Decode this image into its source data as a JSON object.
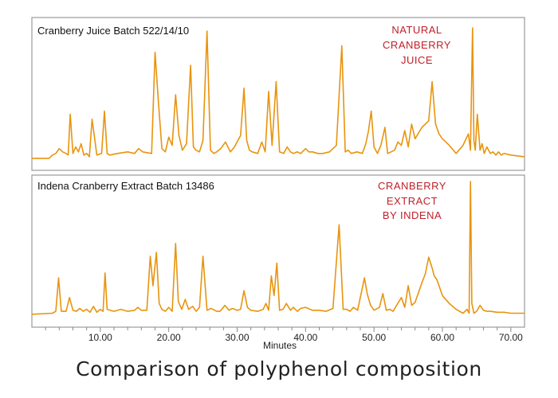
{
  "chart_data": [
    {
      "type": "line",
      "title": "Cranberry Juice Batch 522/14/10",
      "annotation": [
        "NATURAL",
        "CRANBERRY",
        "JUICE"
      ],
      "annotation_color": "#c0202a",
      "line_color": "#e8940e",
      "xlim": [
        0,
        72
      ],
      "grid": false,
      "x": [
        0,
        2.5,
        3.0,
        3.5,
        4.0,
        4.5,
        5.0,
        5.3,
        5.6,
        6.0,
        6.4,
        6.8,
        7.2,
        7.6,
        8.0,
        8.4,
        8.8,
        9.5,
        10.2,
        10.6,
        11.0,
        11.4,
        12.5,
        14.0,
        15.0,
        15.6,
        16.2,
        17.5,
        18.0,
        18.5,
        19.0,
        19.5,
        20.0,
        20.5,
        21.0,
        21.5,
        22.0,
        22.6,
        23.2,
        23.6,
        24.0,
        24.5,
        25.0,
        25.6,
        26.1,
        26.6,
        27.0,
        27.6,
        28.3,
        29.0,
        29.6,
        30.5,
        31.0,
        31.4,
        31.8,
        32.2,
        33.0,
        33.6,
        34.1,
        34.6,
        35.1,
        35.7,
        36.2,
        36.8,
        37.3,
        37.8,
        38.2,
        38.8,
        39.3,
        40.0,
        40.5,
        41.0,
        41.8,
        42.5,
        43.5,
        44.5,
        45.3,
        45.8,
        46.2,
        46.7,
        47.5,
        48.3,
        48.8,
        49.2,
        49.6,
        50.0,
        50.5,
        51.0,
        51.6,
        52.0,
        52.5,
        53.0,
        53.5,
        54.0,
        54.5,
        55.0,
        55.5,
        56.0,
        57.0,
        58.0,
        58.5,
        59.0,
        59.5,
        60.0,
        61.0,
        62.0,
        63.0,
        63.8,
        64.1,
        64.4,
        64.6,
        64.8,
        65.1,
        65.5,
        65.8,
        66.1,
        66.5,
        67.0,
        67.4,
        67.8,
        68.2,
        68.6,
        69.0,
        70.0,
        72.0
      ],
      "y": [
        1,
        1,
        3,
        4,
        7,
        5,
        4,
        3,
        28,
        4,
        8,
        5,
        10,
        3,
        4,
        2,
        25,
        3,
        4,
        30,
        4,
        3,
        4,
        5,
        4,
        7,
        5,
        4,
        66,
        35,
        7,
        5,
        14,
        9,
        40,
        15,
        6,
        10,
        58,
        8,
        6,
        5,
        12,
        79,
        6,
        4,
        5,
        7,
        11,
        5,
        8,
        15,
        44,
        12,
        6,
        5,
        4,
        11,
        5,
        42,
        9,
        48,
        5,
        4,
        8,
        5,
        4,
        5,
        4,
        7,
        5,
        5,
        4,
        4,
        5,
        9,
        70,
        5,
        6,
        4,
        5,
        4,
        10,
        18,
        30,
        8,
        4,
        9,
        20,
        4,
        5,
        6,
        11,
        9,
        18,
        8,
        22,
        13,
        20,
        24,
        48,
        22,
        16,
        13,
        9,
        4,
        9,
        16,
        6,
        81,
        12,
        6,
        28,
        6,
        10,
        4,
        8,
        4,
        5,
        3,
        5,
        3,
        4,
        3,
        2
      ]
    },
    {
      "type": "line",
      "title": "Indena Cranberry Extract Batch 13486",
      "annotation": [
        "CRANBERRY",
        "EXTRACT",
        "BY INDENA"
      ],
      "annotation_color": "#c0202a",
      "line_color": "#e8940e",
      "xlim": [
        0,
        72
      ],
      "grid": false,
      "xlabel": "Minutes",
      "xticks": [
        "10.00",
        "20.00",
        "30.00",
        "40.00",
        "50.00",
        "60.00",
        "70.00"
      ],
      "x": [
        0,
        3.0,
        3.5,
        3.9,
        4.3,
        5.0,
        5.5,
        6.0,
        6.5,
        7.0,
        7.5,
        8.0,
        8.5,
        9.0,
        9.5,
        10.0,
        10.4,
        10.7,
        11.0,
        12.0,
        13.0,
        14.0,
        15.0,
        15.5,
        16.0,
        16.8,
        17.3,
        17.7,
        18.2,
        18.6,
        19.0,
        19.5,
        20.0,
        20.5,
        21.0,
        21.4,
        21.9,
        22.4,
        22.9,
        23.5,
        24.0,
        24.5,
        25.0,
        25.6,
        26.2,
        27.0,
        27.5,
        28.2,
        28.8,
        29.3,
        30.0,
        30.5,
        31.0,
        31.5,
        32.0,
        33.0,
        33.8,
        34.2,
        34.6,
        35.0,
        35.4,
        35.8,
        36.2,
        36.7,
        37.2,
        37.8,
        38.2,
        38.8,
        39.3,
        40.0,
        41.0,
        42.0,
        43.0,
        44.0,
        44.9,
        45.5,
        46.0,
        46.5,
        47.0,
        47.6,
        48.0,
        48.6,
        49.0,
        49.5,
        50.0,
        50.8,
        51.3,
        51.8,
        52.3,
        52.8,
        53.3,
        54.0,
        54.5,
        55.0,
        55.5,
        56.0,
        57.0,
        57.5,
        58.0,
        58.5,
        58.8,
        59.2,
        59.6,
        60.0,
        61.0,
        62.0,
        63.0,
        63.6,
        63.9,
        64.1,
        64.3,
        64.6,
        65.0,
        65.5,
        66.0,
        66.5,
        67.0,
        68.0,
        69.0,
        70.0,
        72.0
      ],
      "y": [
        1,
        2,
        4,
        38,
        4,
        4,
        18,
        5,
        4,
        7,
        4,
        6,
        3,
        9,
        3,
        6,
        4,
        43,
        6,
        4,
        6,
        4,
        5,
        8,
        5,
        5,
        60,
        30,
        64,
        12,
        6,
        4,
        8,
        4,
        73,
        14,
        6,
        16,
        6,
        9,
        4,
        8,
        60,
        5,
        7,
        4,
        4,
        10,
        5,
        7,
        5,
        6,
        25,
        8,
        5,
        4,
        6,
        12,
        5,
        40,
        20,
        53,
        5,
        6,
        12,
        5,
        8,
        4,
        7,
        8,
        5,
        5,
        4,
        7,
        92,
        6,
        6,
        4,
        8,
        5,
        18,
        38,
        22,
        10,
        5,
        8,
        22,
        5,
        6,
        4,
        10,
        18,
        8,
        30,
        10,
        13,
        33,
        42,
        59,
        48,
        40,
        36,
        28,
        20,
        12,
        6,
        2,
        6,
        2,
        136,
        12,
        2,
        4,
        10,
        5,
        4,
        4,
        3,
        3,
        2,
        2
      ]
    }
  ],
  "caption": "Comparison of polyphenol composition"
}
